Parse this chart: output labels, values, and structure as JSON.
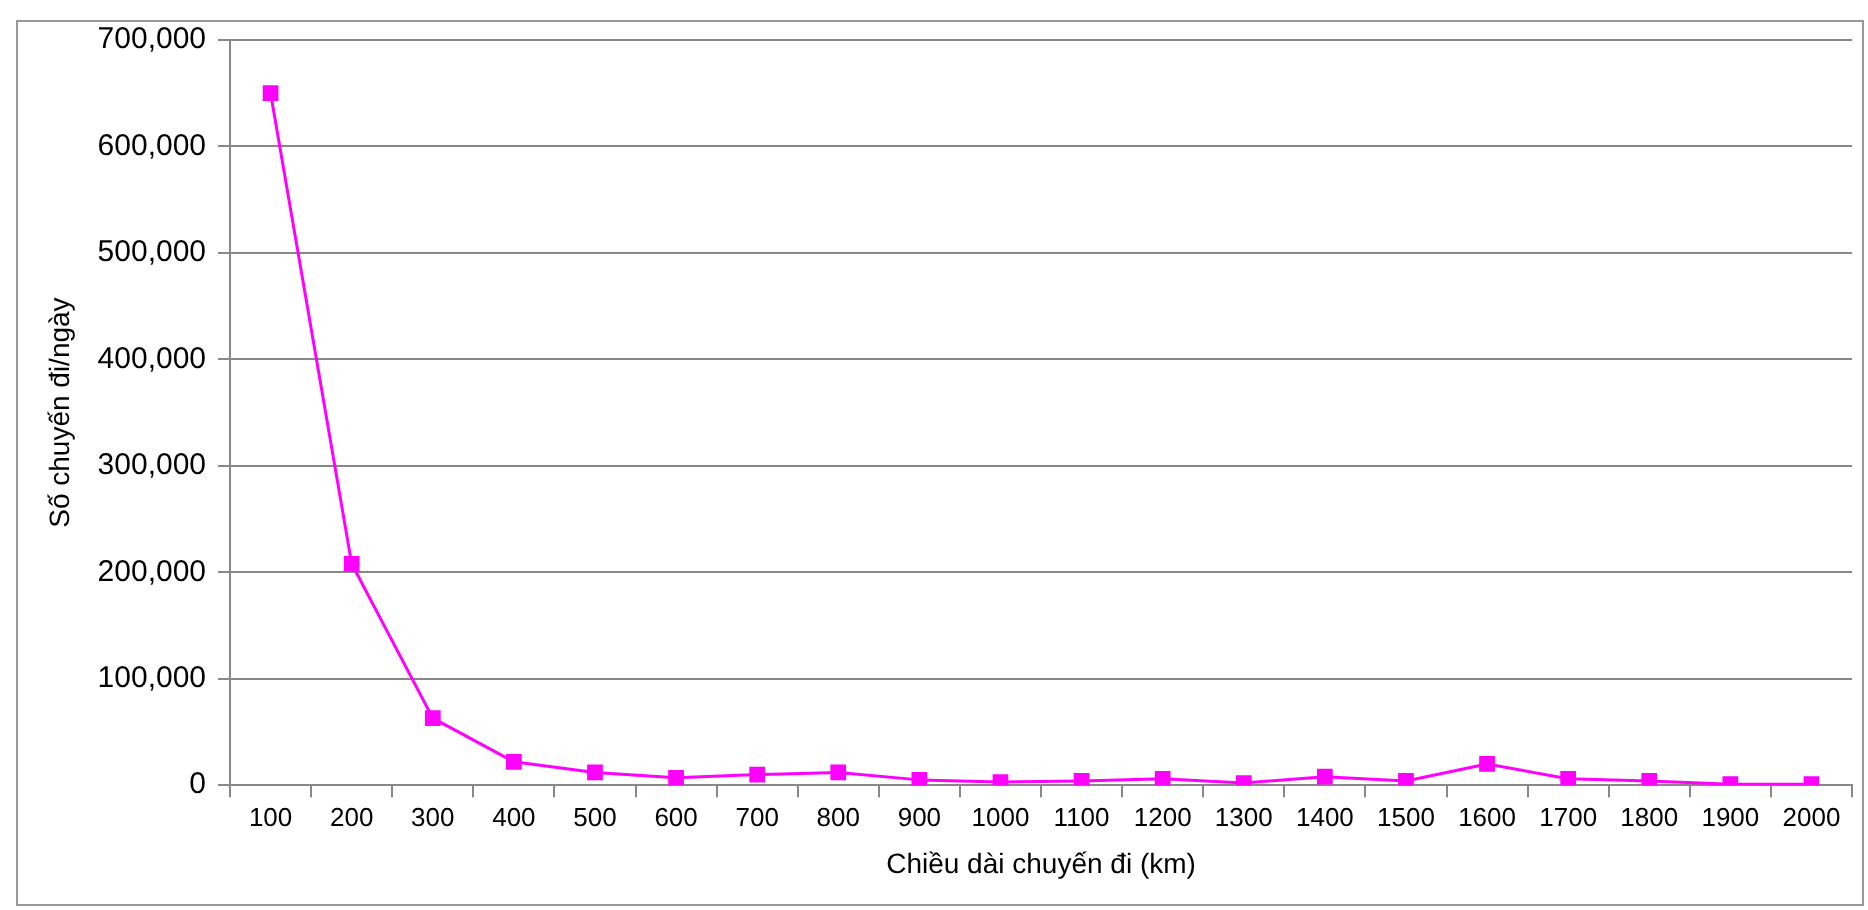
{
  "chart_data": {
    "type": "line",
    "xlabel": "Chiều dài chuyến đi (km)",
    "ylabel": "Số chuyến đi/ngày",
    "categories": [
      "100",
      "200",
      "300",
      "400",
      "500",
      "600",
      "700",
      "800",
      "900",
      "1000",
      "1100",
      "1200",
      "1300",
      "1400",
      "1500",
      "1600",
      "1700",
      "1800",
      "1900",
      "2000"
    ],
    "series": [
      {
        "color": "#ff00ff",
        "values": [
          650000,
          208000,
          63000,
          22000,
          12000,
          7000,
          10000,
          12000,
          5000,
          3000,
          4000,
          6000,
          2000,
          8000,
          4000,
          20000,
          6000,
          4000,
          1000,
          1000
        ]
      }
    ],
    "ylim": [
      0,
      700000
    ],
    "yticks": [
      {
        "value": 0,
        "label": "0"
      },
      {
        "value": 100000,
        "label": "100,000"
      },
      {
        "value": 200000,
        "label": "200,000"
      },
      {
        "value": 300000,
        "label": "300,000"
      },
      {
        "value": 400000,
        "label": "400,000"
      },
      {
        "value": 500000,
        "label": "500,000"
      },
      {
        "value": 600000,
        "label": "600,000"
      },
      {
        "value": 700000,
        "label": "700,000"
      }
    ],
    "grid": "y",
    "legend": false,
    "marker": "square",
    "line_style": "solid"
  }
}
